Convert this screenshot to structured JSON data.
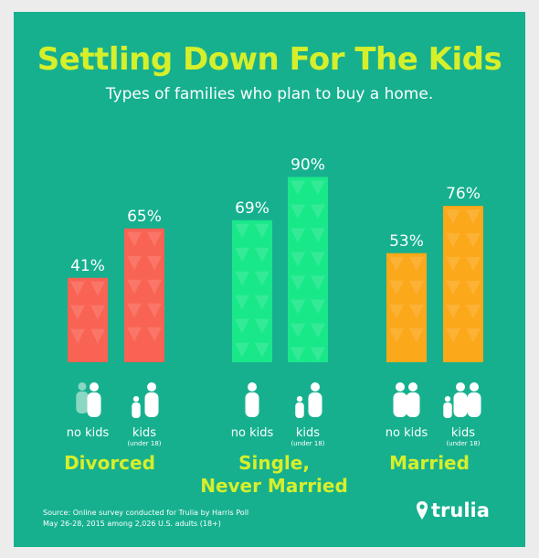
{
  "title": "Settling Down For The Kids",
  "subtitle": "Types of families who plan to buy a home.",
  "source": {
    "line1": "Source: Online survey conducted for Trulia by Harris Poll",
    "line2": "May 26-28, 2015 among 2,026 U.S. adults (18+)"
  },
  "brand": {
    "name": "trulia",
    "icon": "pin-icon"
  },
  "colors": {
    "background": "#16b08f",
    "title": "#d6ef2b",
    "divorced": "#f96354",
    "single": "#19e889",
    "married": "#fba81a"
  },
  "chart_data": {
    "type": "bar",
    "title": "Settling Down For The Kids",
    "subtitle": "Types of families who plan to buy a home.",
    "ylim": [
      0,
      100
    ],
    "unit": "%",
    "groups": [
      {
        "name": "Divorced",
        "color": "#f96354",
        "bars": [
          {
            "label": "no kids",
            "sublabel": "",
            "value": 41,
            "value_label": "41%",
            "icon": "parent-icon"
          },
          {
            "label": "kids",
            "sublabel": "(under 18)",
            "value": 65,
            "value_label": "65%",
            "icon": "parent-with-child-icon"
          }
        ]
      },
      {
        "name": "Single, Never Married",
        "name_lines": [
          "Single,",
          "Never Married"
        ],
        "color": "#19e889",
        "bars": [
          {
            "label": "no kids",
            "sublabel": "",
            "value": 69,
            "value_label": "69%",
            "icon": "single-person-icon"
          },
          {
            "label": "kids",
            "sublabel": "(under 18)",
            "value": 90,
            "value_label": "90%",
            "icon": "parent-with-child-icon"
          }
        ]
      },
      {
        "name": "Married",
        "color": "#fba81a",
        "bars": [
          {
            "label": "no kids",
            "sublabel": "",
            "value": 53,
            "value_label": "53%",
            "icon": "couple-icon"
          },
          {
            "label": "kids",
            "sublabel": "(under 18)",
            "value": 76,
            "value_label": "76%",
            "icon": "family-icon"
          }
        ]
      }
    ]
  }
}
